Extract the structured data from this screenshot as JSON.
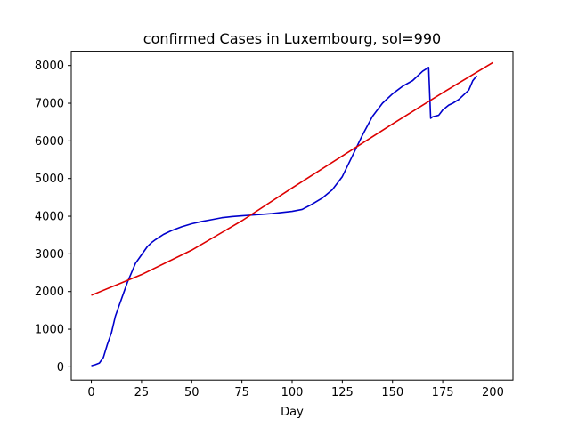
{
  "chart_data": {
    "type": "line",
    "title": "confirmed Cases in Luxembourg, sol=990",
    "xlabel": "Day",
    "ylabel": "",
    "xlim": [
      -10,
      210
    ],
    "ylim": [
      -350,
      8380
    ],
    "xticks": [
      0,
      25,
      50,
      75,
      100,
      125,
      150,
      175,
      200
    ],
    "yticks": [
      0,
      1000,
      2000,
      3000,
      4000,
      5000,
      6000,
      7000,
      8000
    ],
    "grid": false,
    "series": [
      {
        "color": "#0000cc",
        "x": [
          0,
          2,
          4,
          6,
          8,
          10,
          12,
          14,
          16,
          18,
          20,
          22,
          24,
          26,
          28,
          30,
          32,
          34,
          36,
          38,
          40,
          45,
          50,
          55,
          60,
          65,
          70,
          75,
          80,
          85,
          90,
          95,
          100,
          105,
          110,
          115,
          120,
          125,
          130,
          135,
          140,
          145,
          150,
          155,
          160,
          165,
          168,
          169,
          170,
          173,
          175,
          178,
          180,
          183,
          185,
          188,
          190,
          192
        ],
        "y": [
          30,
          60,
          100,
          250,
          600,
          900,
          1350,
          1650,
          1950,
          2250,
          2500,
          2750,
          2900,
          3050,
          3200,
          3300,
          3380,
          3450,
          3520,
          3570,
          3620,
          3720,
          3800,
          3860,
          3910,
          3960,
          3990,
          4010,
          4030,
          4050,
          4070,
          4100,
          4130,
          4180,
          4320,
          4480,
          4700,
          5050,
          5600,
          6150,
          6650,
          7000,
          7250,
          7450,
          7600,
          7850,
          7950,
          6600,
          6640,
          6680,
          6820,
          6950,
          7000,
          7100,
          7200,
          7350,
          7600,
          7730
        ]
      },
      {
        "color": "#dd0000",
        "x": [
          0,
          25,
          50,
          75,
          100,
          125,
          150,
          175,
          200
        ],
        "y": [
          1900,
          2450,
          3100,
          3880,
          4750,
          5600,
          6450,
          7280,
          8080
        ]
      }
    ]
  }
}
